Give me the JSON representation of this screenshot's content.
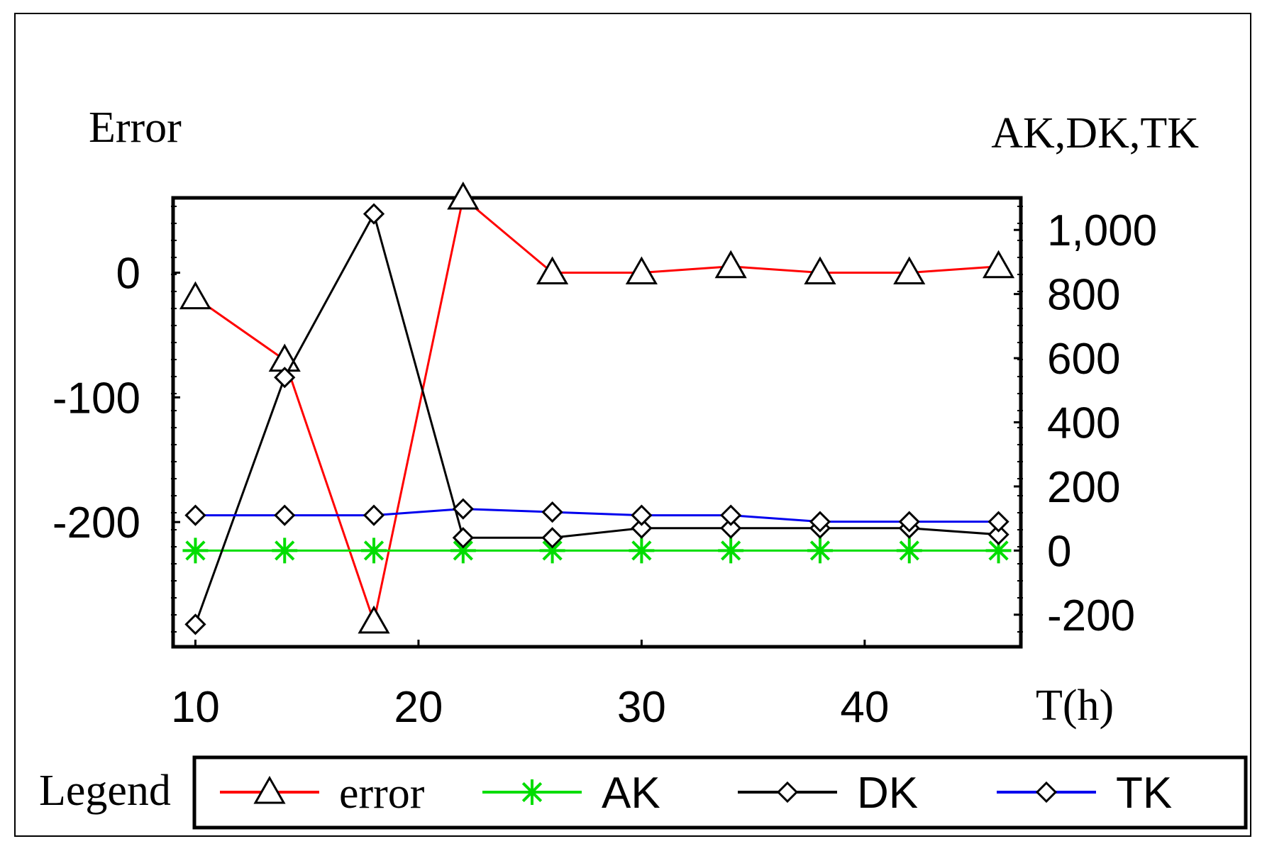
{
  "chart_data": {
    "type": "line",
    "left_axis_title": "Error",
    "right_axis_title": "AK,DK,TK",
    "x_axis_title": "T(h)",
    "xlim": [
      9,
      47
    ],
    "ylim_left": [
      -300,
      60
    ],
    "ylim_right": [
      -300,
      1100
    ],
    "x_ticks": [
      10,
      20,
      30,
      40
    ],
    "x_tick_labels": [
      "10",
      "20",
      "30",
      "40"
    ],
    "left_ticks": [
      0,
      -100,
      -200
    ],
    "left_tick_labels": [
      "0",
      "-100",
      "-200"
    ],
    "right_ticks": [
      1000,
      800,
      600,
      400,
      200,
      0,
      -200
    ],
    "right_tick_labels": [
      "1,000",
      "800",
      "600",
      "400",
      "200",
      "0",
      "-200"
    ],
    "legend_title": "Legend",
    "grid": false,
    "series": [
      {
        "name": "error",
        "axis": "left",
        "color": "#ff0000",
        "marker": "triangle",
        "x": [
          10,
          14,
          18,
          22,
          26,
          30,
          34,
          38,
          42,
          46
        ],
        "y": [
          -20,
          -70,
          -280,
          60,
          0,
          0,
          5,
          0,
          0,
          5
        ]
      },
      {
        "name": "AK",
        "axis": "right",
        "color": "#00dd00",
        "marker": "asterisk",
        "x": [
          10,
          14,
          18,
          22,
          26,
          30,
          34,
          38,
          42,
          46
        ],
        "y": [
          0,
          0,
          0,
          0,
          0,
          0,
          0,
          0,
          0,
          0
        ]
      },
      {
        "name": "DK",
        "axis": "right",
        "color": "#000000",
        "marker": "diamond",
        "x": [
          10,
          14,
          18,
          22,
          26,
          30,
          34,
          38,
          42,
          46
        ],
        "y": [
          -230,
          540,
          1050,
          40,
          40,
          70,
          70,
          70,
          70,
          50
        ]
      },
      {
        "name": "TK",
        "axis": "right",
        "color": "#0000ee",
        "marker": "diamond",
        "x": [
          10,
          14,
          18,
          22,
          26,
          30,
          34,
          38,
          42,
          46
        ],
        "y": [
          110,
          110,
          110,
          130,
          120,
          110,
          110,
          90,
          90,
          90
        ]
      }
    ]
  }
}
